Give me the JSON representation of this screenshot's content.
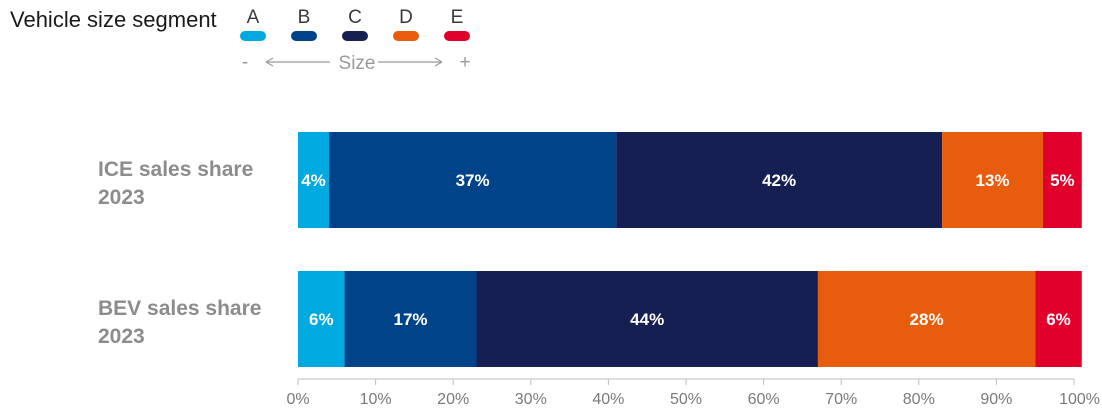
{
  "chart_data": {
    "type": "bar",
    "orientation": "horizontal",
    "stacked": true,
    "legend_title": "Vehicle size segment",
    "legend_placement": "top-left",
    "size_scale": {
      "min_symbol": "-",
      "label": "Size",
      "max_symbol": "+"
    },
    "categories": [
      "ICE sales share 2023",
      "BEV sales share 2023"
    ],
    "category_lines": [
      [
        "ICE sales share",
        "2023"
      ],
      [
        "BEV sales share",
        "2023"
      ]
    ],
    "series": [
      {
        "name": "A",
        "color": "#00a9e0",
        "values": [
          4,
          6
        ],
        "labels": [
          "4%",
          "6%"
        ]
      },
      {
        "name": "B",
        "color": "#004388",
        "values": [
          37,
          17
        ],
        "labels": [
          "37%",
          "17%"
        ]
      },
      {
        "name": "C",
        "color": "#151f52",
        "values": [
          42,
          44
        ],
        "labels": [
          "42%",
          "44%"
        ]
      },
      {
        "name": "D",
        "color": "#e85c0d",
        "values": [
          13,
          28
        ],
        "labels": [
          "13%",
          "28%"
        ]
      },
      {
        "name": "E",
        "color": "#e0002b",
        "values": [
          5,
          6
        ],
        "labels": [
          "5%",
          "6%"
        ]
      }
    ],
    "x_ticks": [
      "0%",
      "10%",
      "20%",
      "30%",
      "40%",
      "50%",
      "60%",
      "70%",
      "80%",
      "90%",
      "100%"
    ],
    "xlim": [
      0,
      100
    ],
    "xlabel": "",
    "ylabel": "",
    "grid": false
  }
}
